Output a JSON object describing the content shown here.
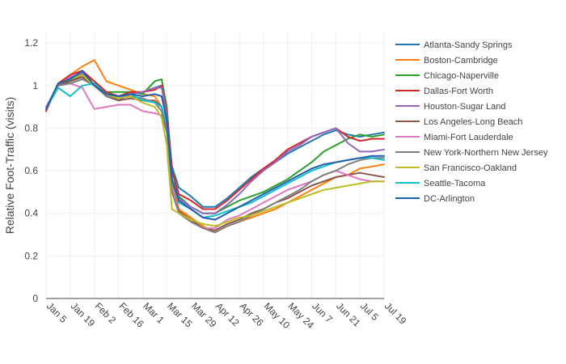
{
  "chart_data": {
    "type": "line",
    "xlabel": "",
    "ylabel": "Relative Foot-Traffic (visits)",
    "x_axis_type": "date",
    "x_range": [
      "2020-01-05",
      "2020-07-19"
    ],
    "ylim": [
      0,
      1.25
    ],
    "y_ticks": [
      0,
      0.2,
      0.4,
      0.6,
      0.8,
      1,
      1.2
    ],
    "y_tick_labels": [
      "0",
      "0.2",
      "0.4",
      "0.6",
      "0.8",
      "1",
      "1.2"
    ],
    "x_ticks": [
      "2020-01-05",
      "2020-01-19",
      "2020-02-02",
      "2020-02-16",
      "2020-03-01",
      "2020-03-15",
      "2020-03-29",
      "2020-04-12",
      "2020-04-26",
      "2020-05-10",
      "2020-05-24",
      "2020-06-07",
      "2020-06-21",
      "2020-07-05",
      "2020-07-19"
    ],
    "x_tick_labels": [
      "Jan 5",
      "Jan 19",
      "Feb 2",
      "Feb 16",
      "Mar 1",
      "Mar 15",
      "Mar 29",
      "Apr 12",
      "Apr 26",
      "May 10",
      "May 24",
      "Jun 7",
      "Jun 21",
      "Jul 5",
      "Jul 19"
    ],
    "grid": true,
    "legend_position": "right",
    "x": [
      "2020-01-05",
      "2020-01-12",
      "2020-01-19",
      "2020-01-26",
      "2020-02-02",
      "2020-02-09",
      "2020-02-16",
      "2020-02-23",
      "2020-03-01",
      "2020-03-08",
      "2020-03-12",
      "2020-03-15",
      "2020-03-18",
      "2020-03-22",
      "2020-03-29",
      "2020-04-05",
      "2020-04-12",
      "2020-04-19",
      "2020-04-26",
      "2020-05-03",
      "2020-05-10",
      "2020-05-17",
      "2020-05-24",
      "2020-05-31",
      "2020-06-07",
      "2020-06-14",
      "2020-06-21",
      "2020-06-28",
      "2020-07-05",
      "2020-07-12",
      "2020-07-19"
    ],
    "series": [
      {
        "name": "Atlanta-Sandy Springs",
        "color": "#1f77b4",
        "values": [
          0.9,
          1.0,
          1.02,
          1.05,
          1.0,
          0.95,
          0.93,
          0.96,
          0.97,
          0.99,
          1.0,
          0.88,
          0.62,
          0.52,
          0.48,
          0.43,
          0.43,
          0.47,
          0.52,
          0.57,
          0.61,
          0.64,
          0.68,
          0.71,
          0.74,
          0.77,
          0.79,
          0.77,
          0.76,
          0.77,
          0.78
        ]
      },
      {
        "name": "Boston-Cambridge",
        "color": "#ff7f0e",
        "values": [
          0.89,
          1.01,
          1.05,
          1.09,
          1.12,
          1.02,
          1.0,
          0.98,
          0.96,
          0.95,
          0.9,
          0.8,
          0.55,
          0.42,
          0.38,
          0.34,
          0.31,
          0.34,
          0.36,
          0.38,
          0.4,
          0.42,
          0.45,
          0.48,
          0.51,
          0.54,
          0.57,
          0.58,
          0.61,
          0.62,
          0.63
        ]
      },
      {
        "name": "Chicago-Naperville",
        "color": "#2ca02c",
        "values": [
          0.9,
          1.0,
          1.03,
          1.06,
          1.02,
          0.97,
          0.97,
          0.97,
          0.96,
          1.02,
          1.03,
          0.9,
          0.6,
          0.48,
          0.43,
          0.4,
          0.4,
          0.43,
          0.46,
          0.48,
          0.5,
          0.53,
          0.56,
          0.6,
          0.64,
          0.69,
          0.72,
          0.75,
          0.77,
          0.76,
          0.77
        ]
      },
      {
        "name": "Dallas-Fort Worth",
        "color": "#d62728",
        "values": [
          0.88,
          1.01,
          1.05,
          1.07,
          1.02,
          0.97,
          0.95,
          0.97,
          0.97,
          0.98,
          1.0,
          0.88,
          0.6,
          0.49,
          0.46,
          0.42,
          0.42,
          0.46,
          0.51,
          0.56,
          0.61,
          0.65,
          0.7,
          0.73,
          0.76,
          0.78,
          0.8,
          0.76,
          0.74,
          0.75,
          0.75
        ]
      },
      {
        "name": "Houston-Sugar Land",
        "color": "#9467bd",
        "values": [
          0.89,
          1.0,
          1.04,
          1.06,
          1.0,
          0.96,
          0.94,
          0.96,
          0.97,
          0.99,
          0.99,
          0.86,
          0.56,
          0.47,
          0.43,
          0.4,
          0.4,
          0.44,
          0.49,
          0.55,
          0.6,
          0.64,
          0.69,
          0.72,
          0.76,
          0.78,
          0.8,
          0.73,
          0.69,
          0.69,
          0.7
        ]
      },
      {
        "name": "Los Angeles-Long Beach",
        "color": "#8c564b",
        "values": [
          0.89,
          1.0,
          1.02,
          1.04,
          1.0,
          0.95,
          0.93,
          0.94,
          0.93,
          0.93,
          0.9,
          0.8,
          0.52,
          0.41,
          0.37,
          0.33,
          0.32,
          0.35,
          0.37,
          0.4,
          0.42,
          0.45,
          0.47,
          0.5,
          0.53,
          0.55,
          0.57,
          0.58,
          0.59,
          0.58,
          0.57
        ]
      },
      {
        "name": "Miami-Fort Lauderdale",
        "color": "#e377c2",
        "values": [
          0.9,
          1.0,
          1.01,
          0.99,
          0.89,
          0.9,
          0.91,
          0.91,
          0.88,
          0.87,
          0.86,
          0.78,
          0.52,
          0.4,
          0.36,
          0.33,
          0.33,
          0.37,
          0.39,
          0.42,
          0.45,
          0.48,
          0.51,
          0.53,
          0.55,
          0.58,
          0.6,
          0.58,
          0.56,
          0.55,
          0.55
        ]
      },
      {
        "name": "New York-Northern New Jersey",
        "color": "#7f7f7f",
        "values": [
          0.89,
          1.0,
          1.01,
          1.03,
          1.0,
          0.95,
          0.94,
          0.95,
          0.94,
          0.92,
          0.88,
          0.78,
          0.5,
          0.4,
          0.36,
          0.33,
          0.31,
          0.34,
          0.36,
          0.39,
          0.42,
          0.45,
          0.48,
          0.51,
          0.55,
          0.58,
          0.6,
          0.63,
          0.65,
          0.66,
          0.66
        ]
      },
      {
        "name": "San Francisco-Oakland",
        "color": "#bcbd22",
        "values": [
          0.89,
          1.01,
          1.03,
          1.05,
          1.0,
          0.96,
          0.94,
          0.95,
          0.92,
          0.9,
          0.85,
          0.72,
          0.42,
          0.4,
          0.37,
          0.35,
          0.34,
          0.36,
          0.38,
          0.39,
          0.41,
          0.43,
          0.45,
          0.47,
          0.49,
          0.51,
          0.52,
          0.53,
          0.54,
          0.55,
          0.55
        ]
      },
      {
        "name": "Seattle-Tacoma",
        "color": "#17becf",
        "values": [
          0.89,
          0.99,
          0.95,
          1.0,
          1.01,
          0.96,
          0.95,
          0.96,
          0.93,
          0.92,
          0.9,
          0.82,
          0.56,
          0.45,
          0.42,
          0.38,
          0.39,
          0.41,
          0.43,
          0.45,
          0.48,
          0.51,
          0.54,
          0.57,
          0.6,
          0.62,
          0.64,
          0.65,
          0.66,
          0.66,
          0.65
        ]
      },
      {
        "name": "DC-Arlington",
        "color": "#1f5fa8",
        "values": [
          0.89,
          1.01,
          1.03,
          1.07,
          1.0,
          0.96,
          0.95,
          0.96,
          0.95,
          0.96,
          0.95,
          0.84,
          0.56,
          0.46,
          0.42,
          0.38,
          0.37,
          0.4,
          0.43,
          0.46,
          0.49,
          0.52,
          0.55,
          0.58,
          0.61,
          0.63,
          0.64,
          0.65,
          0.66,
          0.67,
          0.67
        ]
      }
    ]
  }
}
